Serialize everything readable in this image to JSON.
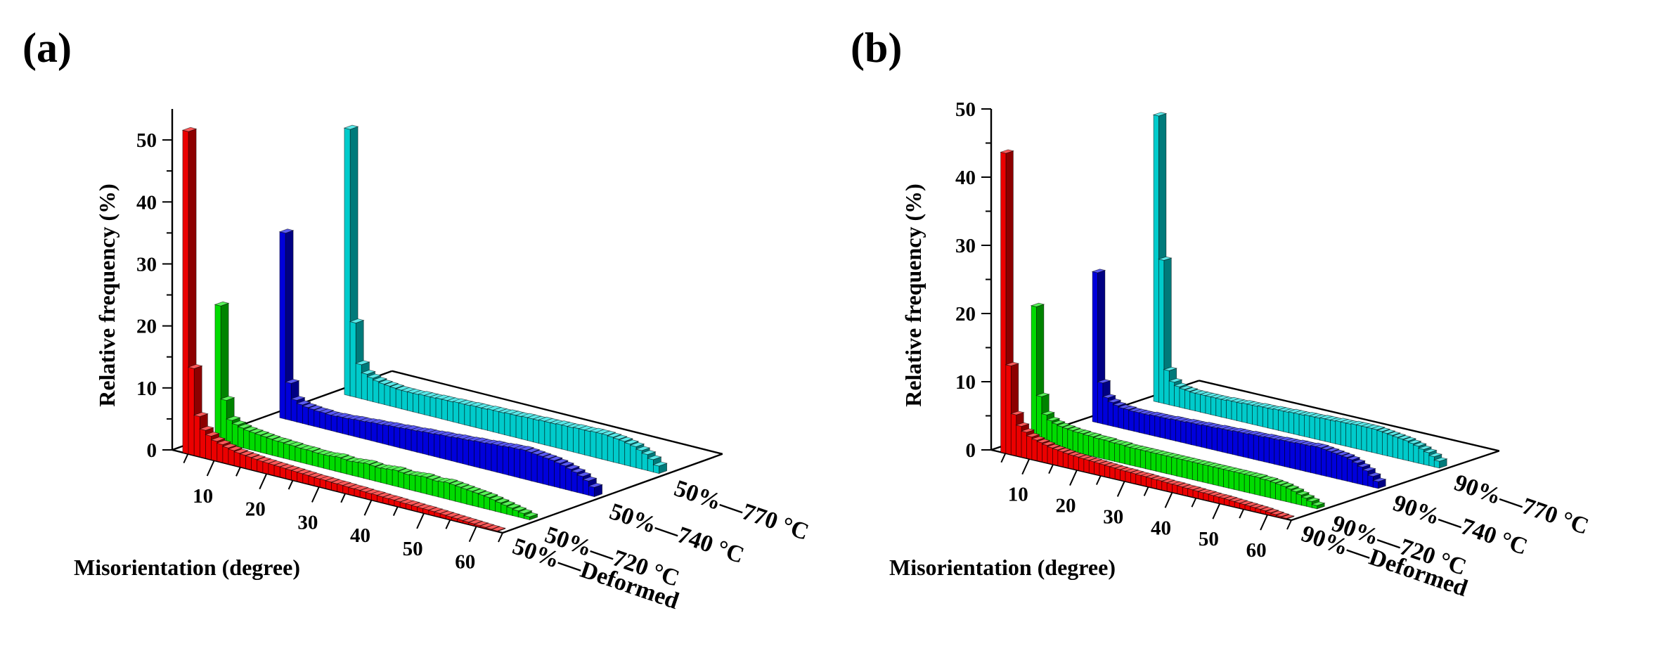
{
  "chart_data": [
    {
      "type": "bar",
      "panel_label": "(a)",
      "title": "",
      "ylabel": "Relative frequency (%)",
      "xlabel": "Misorientation (degree)",
      "ylim": [
        0,
        55
      ],
      "yticks": [
        0,
        10,
        20,
        30,
        40,
        50
      ],
      "xticks": [
        10,
        20,
        30,
        40,
        50,
        60
      ],
      "xlim": [
        2,
        65
      ],
      "series": [
        {
          "name": "50%—Deformed",
          "color": "#ff0000",
          "values": [
            52,
            14,
            6.5,
            4.5,
            3.8,
            3.2,
            2.9,
            2.6,
            2.4,
            2.2,
            2.1,
            2.0,
            1.9,
            1.8,
            1.75,
            1.7,
            1.65,
            1.6,
            1.55,
            1.5,
            1.45,
            1.4,
            1.35,
            1.3,
            1.3,
            1.25,
            1.2,
            1.2,
            1.15,
            1.1,
            1.1,
            1.05,
            1.0,
            1.0,
            0.95,
            0.9,
            0.9,
            0.85,
            0.8,
            0.8,
            0.75,
            0.7,
            0.7,
            0.65,
            0.6,
            0.55,
            0.5,
            0.45,
            0.4,
            0.35,
            0.3,
            0.25,
            0.2,
            0.15,
            0.1
          ]
        },
        {
          "name": "50%—720 °C",
          "color": "#00ee00",
          "values": [
            22,
            7,
            4,
            3.5,
            3.2,
            3.0,
            2.9,
            2.8,
            2.7,
            2.6,
            2.5,
            2.5,
            2.4,
            2.4,
            2.3,
            2.3,
            2.3,
            2.2,
            2.2,
            2.2,
            2.3,
            2.4,
            2.3,
            2.2,
            2.3,
            2.4,
            2.5,
            2.4,
            2.3,
            2.4,
            2.5,
            2.6,
            2.5,
            2.4,
            2.5,
            2.6,
            2.7,
            2.6,
            2.5,
            2.6,
            2.7,
            2.6,
            2.5,
            2.4,
            2.3,
            2.2,
            2.1,
            2.0,
            1.8,
            1.6,
            1.4,
            1.2,
            1.0,
            0.8,
            0.5
          ]
        },
        {
          "name": "50%—740 °C",
          "color": "#0000ee",
          "values": [
            30,
            6,
            3.5,
            3.0,
            2.8,
            2.7,
            2.6,
            2.6,
            2.5,
            2.5,
            2.6,
            2.6,
            2.7,
            2.8,
            2.8,
            2.9,
            3.0,
            3.0,
            3.1,
            3.2,
            3.2,
            3.3,
            3.4,
            3.4,
            3.5,
            3.6,
            3.6,
            3.7,
            3.8,
            3.8,
            3.9,
            4.0,
            4.0,
            4.1,
            4.2,
            4.2,
            4.3,
            4.4,
            4.4,
            4.5,
            4.6,
            4.6,
            4.7,
            4.6,
            4.5,
            4.4,
            4.3,
            4.2,
            4.0,
            3.8,
            3.5,
            3.2,
            2.8,
            2.3,
            1.5
          ]
        },
        {
          "name": "50%—770 °C",
          "color": "#00dddd",
          "values": [
            43,
            12,
            5.5,
            4.2,
            3.8,
            3.5,
            3.3,
            3.2,
            3.1,
            3.0,
            3.0,
            3.0,
            3.0,
            3.1,
            3.1,
            3.1,
            3.2,
            3.2,
            3.2,
            3.3,
            3.3,
            3.3,
            3.4,
            3.4,
            3.4,
            3.5,
            3.5,
            3.5,
            3.6,
            3.6,
            3.6,
            3.7,
            3.7,
            3.7,
            3.8,
            3.8,
            3.8,
            3.9,
            3.9,
            3.9,
            4.0,
            4.0,
            4.0,
            4.1,
            4.1,
            4.1,
            4.0,
            3.9,
            3.8,
            3.6,
            3.4,
            3.0,
            2.6,
            2.0,
            1.2
          ]
        }
      ]
    },
    {
      "type": "bar",
      "panel_label": "(b)",
      "title": "",
      "ylabel": "Relative frequency (%)",
      "xlabel": "Misorientation (degree)",
      "ylim": [
        0,
        50
      ],
      "yticks": [
        0,
        10,
        20,
        30,
        40,
        50
      ],
      "xticks": [
        10,
        20,
        30,
        40,
        50,
        60
      ],
      "xlim": [
        2,
        65
      ],
      "series": [
        {
          "name": "90%—Deformed",
          "color": "#ff0000",
          "values": [
            44,
            13,
            6.0,
            4.5,
            3.8,
            3.3,
            3.0,
            2.8,
            2.6,
            2.4,
            2.3,
            2.2,
            2.1,
            2.0,
            1.95,
            1.9,
            1.85,
            1.8,
            1.75,
            1.7,
            1.65,
            1.6,
            1.55,
            1.5,
            1.5,
            1.45,
            1.4,
            1.4,
            1.35,
            1.3,
            1.3,
            1.25,
            1.2,
            1.2,
            1.15,
            1.1,
            1.1,
            1.05,
            1.0,
            1.0,
            0.95,
            0.9,
            0.9,
            0.85,
            0.8,
            0.75,
            0.7,
            0.65,
            0.6,
            0.55,
            0.5,
            0.4,
            0.3,
            0.2,
            0.1
          ]
        },
        {
          "name": "90%—720 °C",
          "color": "#00ee00",
          "values": [
            20,
            7,
            4.5,
            3.8,
            3.5,
            3.3,
            3.2,
            3.1,
            3.0,
            3.0,
            2.9,
            2.9,
            2.8,
            2.8,
            2.8,
            2.7,
            2.7,
            2.7,
            2.6,
            2.6,
            2.6,
            2.6,
            2.6,
            2.6,
            2.6,
            2.6,
            2.6,
            2.6,
            2.6,
            2.6,
            2.6,
            2.6,
            2.6,
            2.6,
            2.6,
            2.6,
            2.6,
            2.6,
            2.6,
            2.6,
            2.6,
            2.6,
            2.6,
            2.6,
            2.5,
            2.5,
            2.4,
            2.3,
            2.2,
            2.0,
            1.8,
            1.5,
            1.2,
            0.9,
            0.5
          ]
        },
        {
          "name": "90%—740 °C",
          "color": "#0000ee",
          "values": [
            22,
            6,
            4.0,
            3.5,
            3.2,
            3.0,
            3.0,
            2.9,
            2.9,
            2.9,
            2.9,
            3.0,
            3.0,
            3.0,
            3.0,
            3.1,
            3.1,
            3.1,
            3.2,
            3.2,
            3.2,
            3.3,
            3.3,
            3.3,
            3.4,
            3.4,
            3.4,
            3.5,
            3.5,
            3.5,
            3.6,
            3.6,
            3.6,
            3.7,
            3.7,
            3.7,
            3.8,
            3.8,
            3.8,
            3.9,
            3.9,
            3.9,
            4.0,
            4.0,
            3.9,
            3.8,
            3.7,
            3.6,
            3.5,
            3.3,
            3.0,
            2.6,
            2.2,
            1.6,
            1.0
          ]
        },
        {
          "name": "90%—770 °C",
          "color": "#00dddd",
          "values": [
            42,
            21,
            5.0,
            3.5,
            3.0,
            2.8,
            2.7,
            2.6,
            2.6,
            2.6,
            2.6,
            2.6,
            2.6,
            2.6,
            2.7,
            2.7,
            2.7,
            2.8,
            2.8,
            2.8,
            2.9,
            2.9,
            2.9,
            3.0,
            3.0,
            3.0,
            3.1,
            3.1,
            3.1,
            3.2,
            3.2,
            3.2,
            3.3,
            3.3,
            3.3,
            3.4,
            3.4,
            3.4,
            3.5,
            3.5,
            3.5,
            3.5,
            3.5,
            3.4,
            3.3,
            3.2,
            3.1,
            3.0,
            2.9,
            2.7,
            2.5,
            2.2,
            1.9,
            1.5,
            1.0
          ]
        }
      ]
    }
  ]
}
